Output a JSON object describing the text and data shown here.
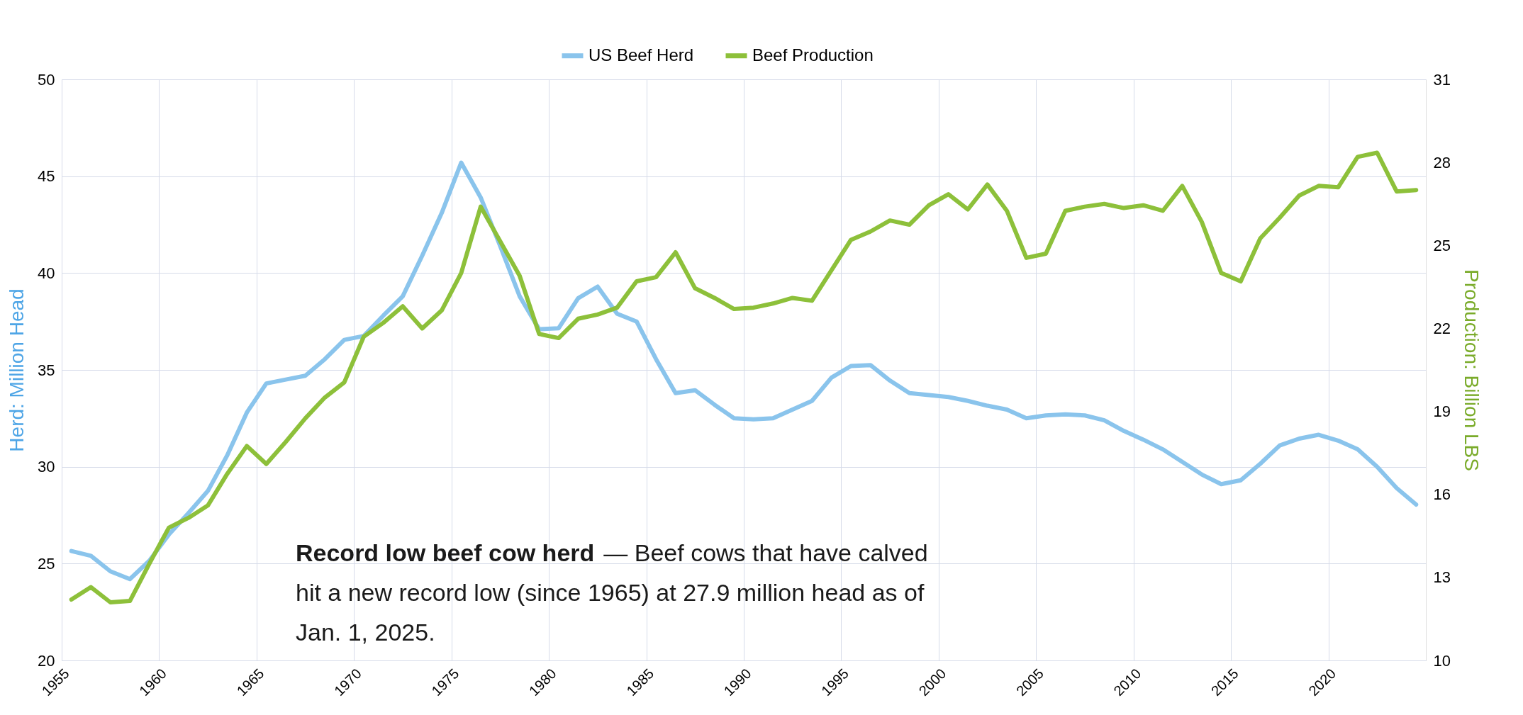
{
  "chart_data": {
    "type": "line",
    "x": [
      1955.5,
      1956.5,
      1957.5,
      1958.5,
      1959.5,
      1960.5,
      1961.5,
      1962.5,
      1963.5,
      1964.5,
      1965.5,
      1966.5,
      1967.5,
      1968.5,
      1969.5,
      1970.5,
      1971.5,
      1972.5,
      1973.5,
      1974.5,
      1975.5,
      1976.5,
      1977.5,
      1978.5,
      1979.5,
      1980.5,
      1981.5,
      1982.5,
      1983.5,
      1984.5,
      1985.5,
      1986.5,
      1987.5,
      1988.5,
      1989.5,
      1990.5,
      1991.5,
      1992.5,
      1993.5,
      1994.5,
      1995.5,
      1996.5,
      1997.5,
      1998.5,
      1999.5,
      2000.5,
      2001.5,
      2002.5,
      2003.5,
      2004.5,
      2005.5,
      2006.5,
      2007.5,
      2008.5,
      2009.5,
      2010.5,
      2011.5,
      2012.5,
      2013.5,
      2014.5,
      2015.5,
      2016.5,
      2017.5,
      2018.5,
      2019.5,
      2020.5,
      2021.5,
      2022.5,
      2023.5,
      2024.5
    ],
    "series": [
      {
        "name": "US Beef Herd",
        "color": "#8ac4ec",
        "values": [
          25.65,
          25.4,
          24.6,
          24.2,
          25.15,
          26.5,
          27.6,
          28.75,
          30.6,
          32.8,
          34.3,
          34.5,
          34.7,
          35.55,
          36.55,
          36.75,
          37.8,
          38.8,
          40.9,
          43.1,
          45.7,
          43.9,
          41.4,
          38.8,
          37.1,
          37.15,
          38.7,
          39.3,
          37.9,
          37.5,
          35.55,
          33.8,
          33.95,
          33.2,
          32.5,
          32.45,
          32.5,
          32.95,
          33.4,
          34.6,
          35.2,
          35.25,
          34.45,
          33.8,
          33.7,
          33.6,
          33.4,
          33.15,
          32.95,
          32.5,
          32.65,
          32.7,
          32.65,
          32.4,
          31.85,
          31.4,
          30.9,
          30.25,
          29.6,
          29.1,
          29.3,
          30.15,
          31.1,
          31.45,
          31.65,
          31.35,
          30.9,
          30.0,
          28.9,
          28.05
        ]
      },
      {
        "name": "Beef Production",
        "color": "#8dc03a",
        "axis": "y2",
        "values": [
          12.2,
          12.65,
          12.1,
          12.15,
          13.5,
          14.8,
          15.15,
          15.6,
          16.75,
          17.75,
          17.1,
          17.9,
          18.75,
          19.5,
          20.05,
          21.7,
          22.2,
          22.8,
          22.0,
          22.65,
          24.0,
          26.4,
          25.15,
          23.9,
          21.8,
          21.65,
          22.35,
          22.5,
          22.75,
          23.7,
          23.85,
          24.75,
          23.45,
          23.1,
          22.7,
          22.75,
          22.9,
          23.1,
          23.0,
          24.1,
          25.2,
          25.5,
          25.9,
          25.75,
          26.45,
          26.85,
          26.3,
          27.2,
          26.25,
          24.55,
          24.7,
          26.25,
          26.4,
          26.5,
          26.35,
          26.45,
          26.25,
          27.15,
          25.85,
          24.0,
          23.7,
          25.25,
          26.0,
          26.8,
          27.15,
          27.1,
          28.2,
          28.35,
          26.95,
          27.0
        ]
      }
    ],
    "xlim": [
      1955,
      2025
    ],
    "xticks": [
      1955,
      1960,
      1965,
      1970,
      1975,
      1980,
      1985,
      1990,
      1995,
      2000,
      2005,
      2010,
      2015,
      2020
    ],
    "ylim": [
      20,
      50
    ],
    "yticks": [
      20,
      25,
      30,
      35,
      40,
      45,
      50
    ],
    "y2lim": [
      10,
      31
    ],
    "y2ticks": [
      10,
      13,
      16,
      19,
      22,
      25,
      28,
      31
    ],
    "ylabel": "Herd: Million Head",
    "y2label": "Production: Billion LBS",
    "annotations": [
      "Record low beef cow herd",
      "— Beef cows that have calved hit a new record low (since 1965) at 27.9 million head as of Jan. 1, 2025."
    ],
    "legend": "top",
    "grid": true,
    "line_style": "solid",
    "marker": "none"
  }
}
